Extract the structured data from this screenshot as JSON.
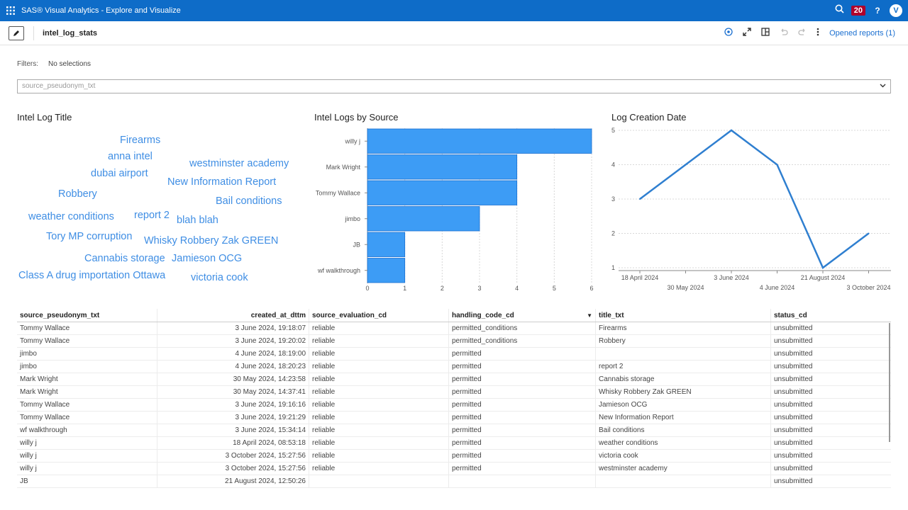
{
  "app": {
    "title": "SAS® Visual Analytics - Explore and Visualize",
    "notification_count": "20",
    "help": "?",
    "avatar_initial": "V"
  },
  "toolbar": {
    "report_name": "intel_log_stats",
    "opened_reports": "Opened reports (1)"
  },
  "filters": {
    "label": "Filters:",
    "value": "No selections",
    "dropdown_placeholder": "source_pseudonym_txt"
  },
  "word_cloud": {
    "title": "Intel Log Title",
    "words": [
      "Firearms",
      "anna intel",
      "westminster academy",
      "dubai airport",
      "New Information Report",
      "Robbery",
      "Bail conditions",
      "weather conditions",
      "report 2",
      "blah blah",
      "Tory MP corruption",
      "Whisky Robbery Zak GREEN",
      "Cannabis storage",
      "Jamieson OCG",
      "Class A drug importation Ottawa",
      "victoria cook"
    ]
  },
  "bar_chart_title": "Intel Logs by Source",
  "line_chart_title": "Log Creation Date",
  "chart_data": [
    {
      "type": "bar",
      "orientation": "horizontal",
      "title": "Intel Logs by Source",
      "categories": [
        "willy j",
        "Mark Wright",
        "Tommy Wallace",
        "jimbo",
        "JB",
        "wf walkthrough"
      ],
      "values": [
        6,
        4,
        4,
        3,
        1,
        1
      ],
      "xlim": [
        0,
        6
      ],
      "xticks": [
        "0",
        "1",
        "2",
        "3",
        "4",
        "5",
        "6"
      ],
      "color": "#3d9cf5",
      "grid": true
    },
    {
      "type": "line",
      "title": "Log Creation Date",
      "x": [
        "18 April 2024",
        "30 May 2024",
        "3 June 2024",
        "4 June 2024",
        "21 August 2024",
        "3 October 2024"
      ],
      "values": [
        3,
        4,
        5,
        4,
        1,
        2
      ],
      "ylim": [
        1,
        5
      ],
      "yticks": [
        "1",
        "2",
        "3",
        "4",
        "5"
      ],
      "color": "#2f7fd0",
      "grid": true
    }
  ],
  "table": {
    "columns": [
      "source_pseudonym_txt",
      "created_at_dttm",
      "source_evaluation_cd",
      "handling_code_cd",
      "title_txt",
      "status_cd"
    ],
    "sort_indicator": "▼",
    "rows": [
      [
        "Tommy Wallace",
        "3 June 2024, 19:18:07",
        "reliable",
        "permitted_conditions",
        "Firearms",
        "unsubmitted"
      ],
      [
        "Tommy Wallace",
        "3 June 2024, 19:20:02",
        "reliable",
        "permitted_conditions",
        "Robbery",
        "unsubmitted"
      ],
      [
        "jimbo",
        "4 June 2024, 18:19:00",
        "reliable",
        "permitted",
        "",
        "unsubmitted"
      ],
      [
        "jimbo",
        "4 June 2024, 18:20:23",
        "reliable",
        "permitted",
        "report 2",
        "unsubmitted"
      ],
      [
        "Mark Wright",
        "30 May 2024, 14:23:58",
        "reliable",
        "permitted",
        "Cannabis storage",
        "unsubmitted"
      ],
      [
        "Mark Wright",
        "30 May 2024, 14:37:41",
        "reliable",
        "permitted",
        "Whisky Robbery Zak GREEN",
        "unsubmitted"
      ],
      [
        "Tommy Wallace",
        "3 June 2024, 19:16:16",
        "reliable",
        "permitted",
        "Jamieson OCG",
        "unsubmitted"
      ],
      [
        "Tommy Wallace",
        "3 June 2024, 19:21:29",
        "reliable",
        "permitted",
        "New Information Report",
        "unsubmitted"
      ],
      [
        "wf walkthrough",
        "3 June 2024, 15:34:14",
        "reliable",
        "permitted",
        "Bail conditions",
        "unsubmitted"
      ],
      [
        "willy j",
        "18 April 2024, 08:53:18",
        "reliable",
        "permitted",
        "weather conditions",
        "unsubmitted"
      ],
      [
        "willy j",
        "3 October 2024, 15:27:56",
        "reliable",
        "permitted",
        "victoria cook",
        "unsubmitted"
      ],
      [
        "willy j",
        "3 October 2024, 15:27:56",
        "reliable",
        "permitted",
        "westminster academy",
        "unsubmitted"
      ],
      [
        "JB",
        "21 August 2024, 12:50:26",
        "",
        "",
        "",
        "unsubmitted"
      ]
    ]
  }
}
